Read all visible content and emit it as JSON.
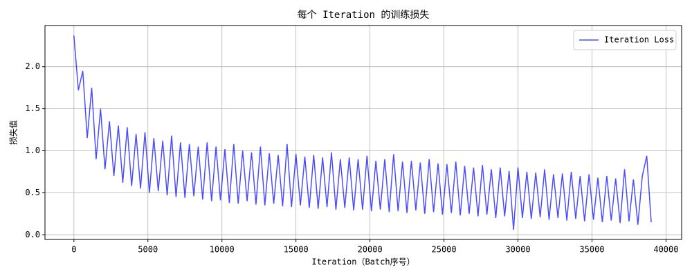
{
  "chart_data": {
    "type": "line",
    "title": "每个 Iteration 的训练损失",
    "x_label": "Iteration（Batch序号）",
    "y_label": "损失值",
    "x": [
      0,
      300,
      600,
      900,
      1200,
      1500,
      1800,
      2100,
      2400,
      2700,
      3000,
      3300,
      3600,
      3900,
      4200,
      4500,
      4800,
      5100,
      5400,
      5700,
      6000,
      6300,
      6600,
      6900,
      7200,
      7500,
      7800,
      8100,
      8400,
      8700,
      9000,
      9300,
      9600,
      9900,
      10200,
      10500,
      10800,
      11100,
      11400,
      11700,
      12000,
      12300,
      12600,
      12900,
      13200,
      13500,
      13800,
      14100,
      14400,
      14700,
      15000,
      15300,
      15600,
      15900,
      16200,
      16500,
      16800,
      17100,
      17400,
      17700,
      18000,
      18300,
      18600,
      18900,
      19200,
      19500,
      19800,
      20100,
      20400,
      20700,
      21000,
      21300,
      21600,
      21900,
      22200,
      22500,
      22800,
      23100,
      23400,
      23700,
      24000,
      24300,
      24600,
      24900,
      25200,
      25500,
      25800,
      26100,
      26400,
      26700,
      27000,
      27300,
      27600,
      27900,
      28200,
      28500,
      28800,
      29100,
      29400,
      29700,
      30000,
      30300,
      30600,
      30900,
      31200,
      31500,
      31800,
      32100,
      32400,
      32700,
      33000,
      33300,
      33600,
      33900,
      34200,
      34500,
      34800,
      35100,
      35400,
      35700,
      36000,
      36300,
      36600,
      36900,
      37200,
      37500,
      37800,
      38100,
      38400,
      38700,
      39000
    ],
    "series": [
      {
        "name": "Iteration Loss",
        "color": "#0000ff",
        "alpha": 0.7,
        "values": [
          2.37,
          1.72,
          1.95,
          1.15,
          1.75,
          0.9,
          1.5,
          0.78,
          1.35,
          0.7,
          1.3,
          0.62,
          1.28,
          0.58,
          1.2,
          0.55,
          1.22,
          0.5,
          1.15,
          0.52,
          1.12,
          0.47,
          1.18,
          0.45,
          1.1,
          0.44,
          1.08,
          0.46,
          1.05,
          0.42,
          1.1,
          0.4,
          1.05,
          0.41,
          1.02,
          0.38,
          1.08,
          0.37,
          1.0,
          0.4,
          0.98,
          0.36,
          1.05,
          0.35,
          0.97,
          0.37,
          0.95,
          0.34,
          1.08,
          0.33,
          0.96,
          0.35,
          0.93,
          0.32,
          0.95,
          0.31,
          0.92,
          0.33,
          0.98,
          0.3,
          0.9,
          0.32,
          0.92,
          0.29,
          0.9,
          0.3,
          0.94,
          0.28,
          0.88,
          0.3,
          0.9,
          0.27,
          0.96,
          0.28,
          0.87,
          0.26,
          0.88,
          0.29,
          0.86,
          0.25,
          0.9,
          0.27,
          0.85,
          0.24,
          0.84,
          0.26,
          0.87,
          0.23,
          0.82,
          0.25,
          0.8,
          0.22,
          0.83,
          0.24,
          0.78,
          0.2,
          0.8,
          0.22,
          0.76,
          0.06,
          0.8,
          0.2,
          0.75,
          0.19,
          0.74,
          0.21,
          0.78,
          0.18,
          0.72,
          0.2,
          0.73,
          0.17,
          0.75,
          0.19,
          0.7,
          0.16,
          0.72,
          0.18,
          0.68,
          0.15,
          0.7,
          0.17,
          0.67,
          0.14,
          0.78,
          0.16,
          0.66,
          0.12,
          0.7,
          0.94,
          0.15
        ]
      }
    ],
    "xlim": [
      -1955,
      41055
    ],
    "xticks": [
      0,
      5000,
      10000,
      15000,
      20000,
      25000,
      30000,
      35000,
      40000
    ],
    "ylim": [
      -0.055,
      2.49
    ],
    "yticks": [
      {
        "value": 0,
        "label": "0.0"
      },
      0.5,
      {
        "value": 1,
        "label": "1.0"
      },
      1.5,
      {
        "value": 2,
        "label": "2.0"
      }
    ],
    "grid": true,
    "legend": "upper right"
  }
}
